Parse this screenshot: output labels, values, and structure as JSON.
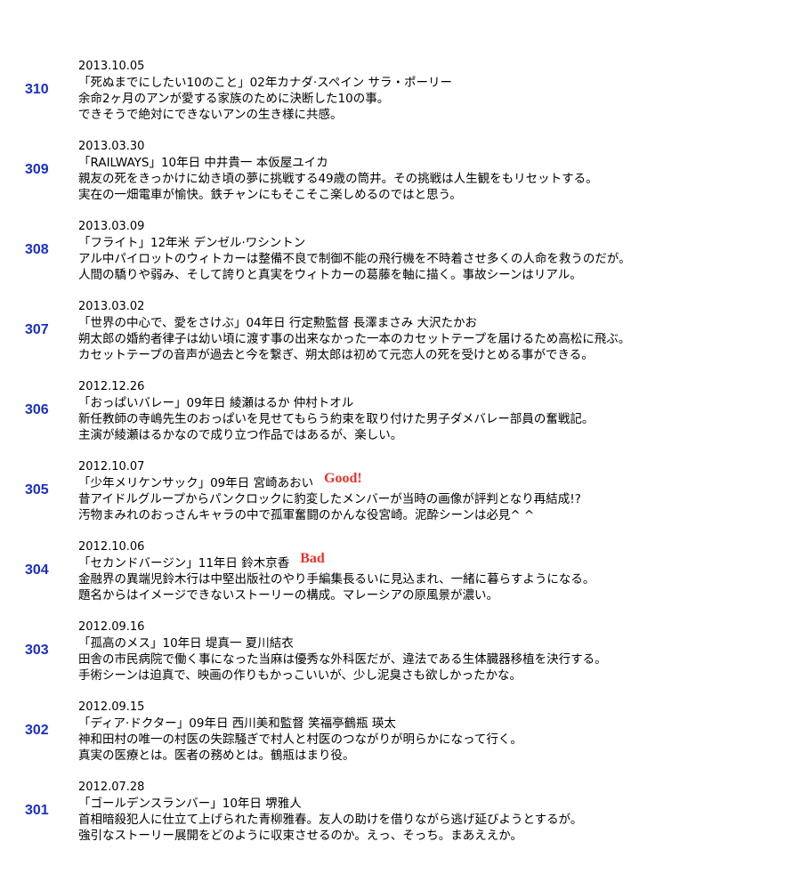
{
  "entries": [
    {
      "number": "310",
      "date": "2013.10.05",
      "title": "「死ぬまでにしたい10のこと」02年カナダ·スペイン サラ・ポーリー",
      "lines": [
        "余命2ヶ月のアンが愛する家族のために決断した10の事。",
        "できそうで絶対にできないアンの生き様に共感。"
      ]
    },
    {
      "number": "309",
      "date": "2013.03.30",
      "title": "「RAILWAYS」10年日 中井貴一 本仮屋ユイカ",
      "lines": [
        "親友の死をきっかけに幼き頃の夢に挑戦する49歳の筒井。その挑戦は人生観をもリセットする。",
        "実在の一畑電車が愉快。鉄チャンにもそこそこ楽しめるのではと思う。"
      ]
    },
    {
      "number": "308",
      "date": "2013.03.09",
      "title": "「フライト」12年米 デンゼル·ワシントン",
      "lines": [
        "アル中パイロットのウィトカーは整備不良で制御不能の飛行機を不時着させ多くの人命を救うのだが。",
        "人間の驕りや弱み、そして誇りと真実をウィトカーの葛藤を軸に描く。事故シーンはリアル。"
      ]
    },
    {
      "number": "307",
      "date": "2013.03.02",
      "title": "「世界の中心で、愛をさけぶ」04年日 行定勲監督 長澤まさみ 大沢たかお",
      "lines": [
        "朔太郎の婚約者律子は幼い頃に渡す事の出来なかった一本のカセットテープを届けるため高松に飛ぶ。",
        "カセットテープの音声が過去と今を繋ぎ、朔太郎は初めて元恋人の死を受けとめる事ができる。"
      ]
    },
    {
      "number": "306",
      "date": "2012.12.26",
      "title": "「おっぱいバレー」09年日 綾瀬はるか 仲村トオル",
      "lines": [
        "新任教師の寺嶋先生のおっぱいを見せてもらう約束を取り付けた男子ダメバレー部員の奮戦記。",
        "主演が綾瀬はるかなので成り立つ作品ではあるが、楽しい。"
      ]
    },
    {
      "number": "305",
      "date": "2012.10.07",
      "title": "「少年メリケンサック」09年日 宮崎あおい",
      "badge": "Good!",
      "lines": [
        "昔アイドルグループからパンクロックに豹変したメンバーが当時の画像が評判となり再結成!?",
        "汚物まみれのおっさんキャラの中で孤軍奮闘のかんな役宮崎。泥酔シーンは必見^ ^"
      ]
    },
    {
      "number": "304",
      "date": "2012.10.06",
      "title": "「セカンドバージン」11年日 鈴木京香",
      "badge": "Bad",
      "lines": [
        "金融界の異端児鈴木行は中堅出版社のやり手編集長るいに見込まれ、一緒に暮らすようになる。",
        "題名からはイメージできないストーリーの構成。マレーシアの原風景が濃い。"
      ]
    },
    {
      "number": "303",
      "date": "2012.09.16",
      "title": "「孤高のメス」10年日 堤真一 夏川結衣",
      "lines": [
        "田舎の市民病院で働く事になった当麻は優秀な外科医だが、違法である生体臓器移植を決行する。",
        "手術シーンは迫真で、映画の作りもかっこいいが、少し泥臭さも欲しかったかな。"
      ]
    },
    {
      "number": "302",
      "date": "2012.09.15",
      "title": "「ディア·ドクター」09年日 西川美和監督 笑福亭鶴瓶 瑛太",
      "lines": [
        "神和田村の唯一の村医の失踪騒ぎで村人と村医のつながりが明らかになって行く。",
        "真実の医療とは。医者の務めとは。鶴瓶はまり役。"
      ]
    },
    {
      "number": "301",
      "date": "2012.07.28",
      "title": "「ゴールデンスランバー」10年日 堺雅人",
      "lines": [
        "首相暗殺犯人に仕立て上げられた青柳雅春。友人の助けを借りながら逃げ延びようとするが。",
        "強引なストーリー展開をどのように収束させるのか。えっ、そっち。まあええか。"
      ]
    }
  ]
}
